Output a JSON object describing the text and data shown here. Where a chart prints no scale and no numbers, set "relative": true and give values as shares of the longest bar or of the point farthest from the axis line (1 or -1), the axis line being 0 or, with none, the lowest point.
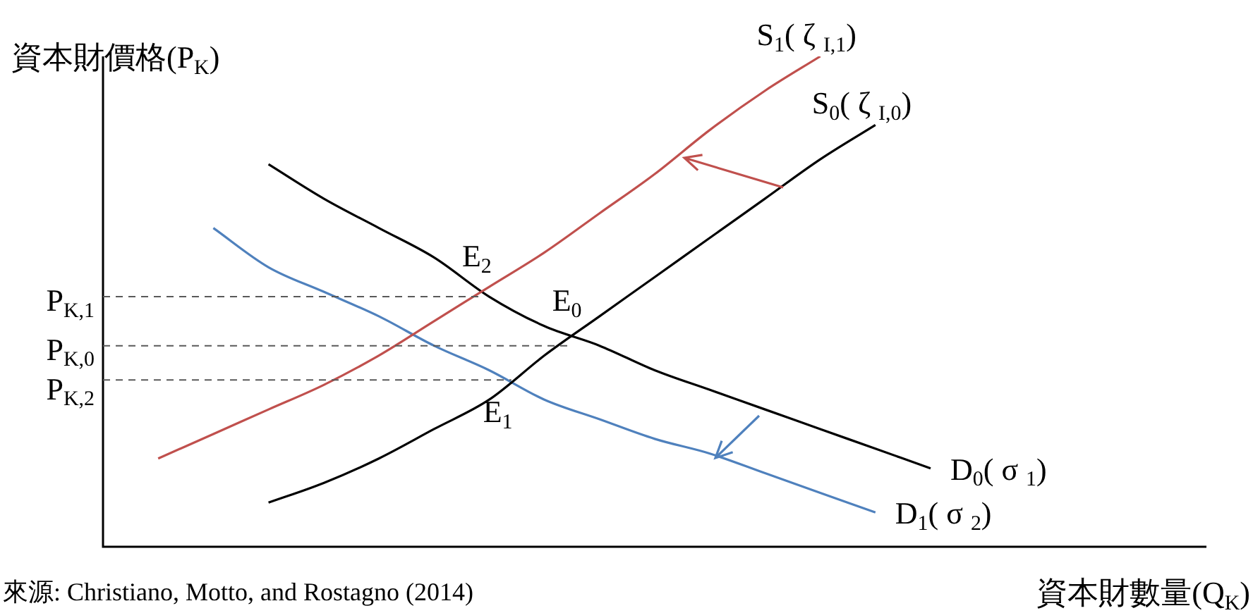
{
  "chart_data": {
    "type": "line",
    "relative": true,
    "marker": "none",
    "xlabel": "資本財數量(Q$_{K}$)",
    "ylabel": "資本財價格(P$_{K}$)",
    "categories": [
      null,
      null,
      null,
      null,
      null,
      null,
      null,
      null,
      null,
      null,
      null,
      null,
      null,
      null,
      null,
      null,
      null,
      null,
      null,
      null,
      null
    ],
    "series": [
      {
        "name": "S$_{1}$( ζ $_{I,1}$)",
        "color": "#c0504d",
        "values": [
          null,
          0.18,
          0.23,
          0.28,
          0.33,
          0.39,
          0.46,
          0.53,
          0.6,
          0.68,
          0.76,
          0.85,
          0.93,
          1.0,
          null,
          null,
          null,
          null,
          null,
          null,
          null
        ]
      },
      {
        "name": "S$_{0}$( ζ $_{I,0}$)",
        "color": "#000000",
        "values": [
          null,
          null,
          null,
          0.09,
          0.13,
          0.18,
          0.24,
          0.3,
          0.39,
          0.47,
          0.55,
          0.63,
          0.71,
          0.79,
          0.86,
          null,
          null,
          null,
          null,
          null,
          null
        ]
      },
      {
        "name": "D$_{0}$( σ $_{1}$)",
        "color": "#000000",
        "values": [
          null,
          null,
          null,
          0.78,
          0.71,
          0.65,
          0.59,
          0.51,
          0.45,
          0.41,
          0.36,
          0.32,
          0.28,
          0.24,
          0.2,
          0.16,
          null,
          null,
          null,
          null,
          null
        ]
      },
      {
        "name": "D$_{1}$( σ $_{2}$)",
        "color": "#4f81bd",
        "values": [
          null,
          null,
          0.65,
          0.57,
          0.52,
          0.47,
          0.41,
          0.36,
          0.3,
          0.26,
          0.22,
          0.19,
          0.15,
          0.11,
          0.07,
          null,
          null,
          null,
          null,
          null,
          null
        ]
      }
    ],
    "ref_lines": [
      {
        "axis": "y",
        "value": 0.51,
        "label": "P$_{K,1}$",
        "line_style": "dashed",
        "color": "#595959"
      },
      {
        "axis": "y",
        "value": 0.41,
        "label": "P$_{K,0}$",
        "line_style": "dashed",
        "color": "#595959"
      },
      {
        "axis": "y",
        "value": 0.34,
        "label": "P$_{K,2}$",
        "line_style": "dashed",
        "color": "#595959"
      }
    ],
    "annotations": [
      {
        "text": "E$_{2}$",
        "y": 0.52
      },
      {
        "text": "E$_{0}$",
        "y": 0.43
      },
      {
        "text": "E$_{1}$",
        "y": 0.34
      },
      "來源: Christiano, Motto, and Rostagno (2014)"
    ]
  }
}
